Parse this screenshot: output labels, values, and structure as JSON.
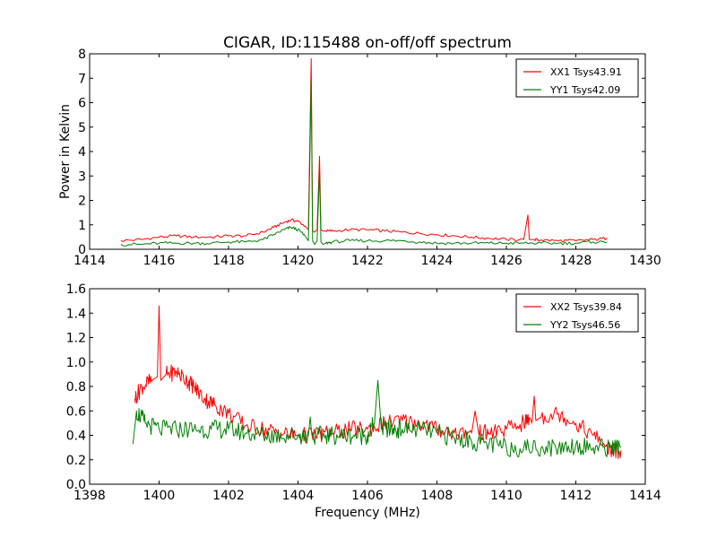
{
  "title": "CIGAR, ID:115488 on-off/off spectrum",
  "xlabel": "Frequency (MHz)",
  "ylabel_top": "Power in Kelvin",
  "colors": {
    "xx": "#ff0000",
    "yy": "#008000"
  },
  "chart_data": [
    {
      "type": "line",
      "title": "CIGAR, ID:115488 on-off/off spectrum",
      "ylabel": "Power in Kelvin",
      "xlim": [
        1414,
        1430
      ],
      "ylim": [
        0,
        8
      ],
      "xticks": [
        1414,
        1416,
        1418,
        1420,
        1422,
        1424,
        1426,
        1428,
        1430
      ],
      "xtick_labels": [
        "1414",
        "1416",
        "1418",
        "1420",
        "1422",
        "1424",
        "1426",
        "1428",
        "1430"
      ],
      "yticks": [
        0,
        1,
        2,
        3,
        4,
        5,
        6,
        7,
        8
      ],
      "ytick_labels": [
        "0",
        "1",
        "2",
        "3",
        "4",
        "5",
        "6",
        "7",
        "8"
      ],
      "legend_position": "top-right",
      "series": [
        {
          "name": "XX1 Tsys43.91",
          "color": "#ff0000",
          "x": [
            1414.9,
            1415.5,
            1416,
            1416.5,
            1417,
            1417.5,
            1418,
            1418.5,
            1419,
            1419.3,
            1419.6,
            1419.8,
            1420.0,
            1420.2,
            1420.3,
            1420.38,
            1420.42,
            1420.48,
            1420.55,
            1420.62,
            1420.66,
            1420.72,
            1420.8,
            1421.0,
            1421.5,
            1422,
            1422.5,
            1423,
            1423.5,
            1424,
            1424.5,
            1425,
            1425.5,
            1426,
            1426.5,
            1426.62,
            1426.66,
            1426.7,
            1426.8,
            1427,
            1427.5,
            1428,
            1428.5,
            1428.9
          ],
          "y": [
            0.35,
            0.4,
            0.5,
            0.55,
            0.5,
            0.5,
            0.55,
            0.55,
            0.7,
            0.9,
            1.1,
            1.2,
            1.15,
            0.95,
            0.8,
            7.8,
            0.75,
            0.7,
            0.8,
            3.8,
            0.8,
            0.75,
            0.75,
            0.75,
            0.8,
            0.8,
            0.75,
            0.7,
            0.65,
            0.6,
            0.55,
            0.5,
            0.45,
            0.4,
            0.4,
            1.4,
            0.4,
            0.4,
            0.4,
            0.38,
            0.35,
            0.35,
            0.4,
            0.45
          ]
        },
        {
          "name": "YY1 Tsys42.09",
          "color": "#008000",
          "x": [
            1414.9,
            1415.5,
            1416,
            1416.5,
            1417,
            1417.5,
            1418,
            1418.5,
            1419,
            1419.3,
            1419.6,
            1419.8,
            1420.0,
            1420.2,
            1420.3,
            1420.38,
            1420.42,
            1420.48,
            1420.55,
            1420.62,
            1420.66,
            1420.72,
            1420.8,
            1421.0,
            1421.5,
            1422,
            1422.5,
            1423,
            1423.5,
            1424,
            1424.5,
            1425,
            1425.5,
            1426,
            1426.5,
            1427,
            1427.5,
            1428,
            1428.5,
            1428.9
          ],
          "y": [
            0.2,
            0.2,
            0.25,
            0.25,
            0.25,
            0.25,
            0.3,
            0.3,
            0.4,
            0.6,
            0.8,
            0.9,
            0.8,
            0.55,
            0.35,
            6.9,
            0.35,
            0.2,
            0.35,
            3.2,
            0.3,
            0.2,
            0.25,
            0.3,
            0.35,
            0.35,
            0.35,
            0.35,
            0.3,
            0.25,
            0.25,
            0.25,
            0.25,
            0.25,
            0.25,
            0.25,
            0.25,
            0.25,
            0.3,
            0.3
          ]
        }
      ]
    },
    {
      "type": "line",
      "title": "",
      "xlabel": "Frequency (MHz)",
      "xlim": [
        1398,
        1414
      ],
      "ylim": [
        0,
        1.6
      ],
      "xticks": [
        1398,
        1400,
        1402,
        1404,
        1406,
        1408,
        1410,
        1412,
        1414
      ],
      "xtick_labels": [
        "1398",
        "1400",
        "1402",
        "1404",
        "1406",
        "1408",
        "1410",
        "1412",
        "1414"
      ],
      "yticks": [
        0,
        0.2,
        0.4,
        0.6,
        0.8,
        1.0,
        1.2,
        1.4,
        1.6
      ],
      "ytick_labels": [
        "0.0",
        "0.2",
        "0.4",
        "0.6",
        "0.8",
        "1.0",
        "1.2",
        "1.4",
        "1.6"
      ],
      "legend_position": "top-right",
      "series": [
        {
          "name": "XX2 Tsys39.84",
          "color": "#ff0000",
          "x": [
            1399.3,
            1399.5,
            1399.8,
            1399.95,
            1400.0,
            1400.05,
            1400.2,
            1400.5,
            1400.8,
            1401.0,
            1401.3,
            1401.6,
            1402.0,
            1402.5,
            1403.0,
            1403.5,
            1404.0,
            1404.5,
            1405.0,
            1405.5,
            1406.0,
            1406.5,
            1407.0,
            1407.5,
            1408.0,
            1408.5,
            1409.0,
            1409.1,
            1409.2,
            1409.5,
            1410.0,
            1410.5,
            1410.75,
            1410.8,
            1410.85,
            1411.0,
            1411.5,
            1412.0,
            1412.5,
            1413.0,
            1413.3
          ],
          "y": [
            0.7,
            0.8,
            0.85,
            0.88,
            1.46,
            0.85,
            0.9,
            0.92,
            0.85,
            0.8,
            0.7,
            0.65,
            0.58,
            0.48,
            0.45,
            0.42,
            0.4,
            0.4,
            0.42,
            0.45,
            0.45,
            0.5,
            0.52,
            0.5,
            0.45,
            0.42,
            0.42,
            0.6,
            0.42,
            0.42,
            0.45,
            0.5,
            0.55,
            0.72,
            0.52,
            0.55,
            0.58,
            0.5,
            0.4,
            0.28,
            0.28
          ]
        },
        {
          "name": "YY2 Tsys46.56",
          "color": "#008000",
          "x": [
            1399.25,
            1399.35,
            1399.6,
            1400.0,
            1400.5,
            1401.0,
            1401.5,
            1402.0,
            1402.5,
            1403.0,
            1403.5,
            1404.0,
            1404.3,
            1404.35,
            1404.4,
            1404.8,
            1405.2,
            1405.6,
            1406.0,
            1406.2,
            1406.3,
            1406.4,
            1406.7,
            1407.0,
            1407.5,
            1408.0,
            1408.5,
            1409.0,
            1409.5,
            1410.0,
            1410.5,
            1411.0,
            1411.5,
            1412.0,
            1412.5,
            1413.0,
            1413.3
          ],
          "y": [
            0.33,
            0.6,
            0.5,
            0.45,
            0.45,
            0.45,
            0.45,
            0.45,
            0.42,
            0.4,
            0.4,
            0.4,
            0.4,
            0.55,
            0.4,
            0.4,
            0.4,
            0.4,
            0.4,
            0.5,
            0.85,
            0.45,
            0.45,
            0.45,
            0.45,
            0.42,
            0.38,
            0.35,
            0.33,
            0.3,
            0.3,
            0.3,
            0.3,
            0.32,
            0.3,
            0.3,
            0.3
          ]
        }
      ]
    }
  ]
}
